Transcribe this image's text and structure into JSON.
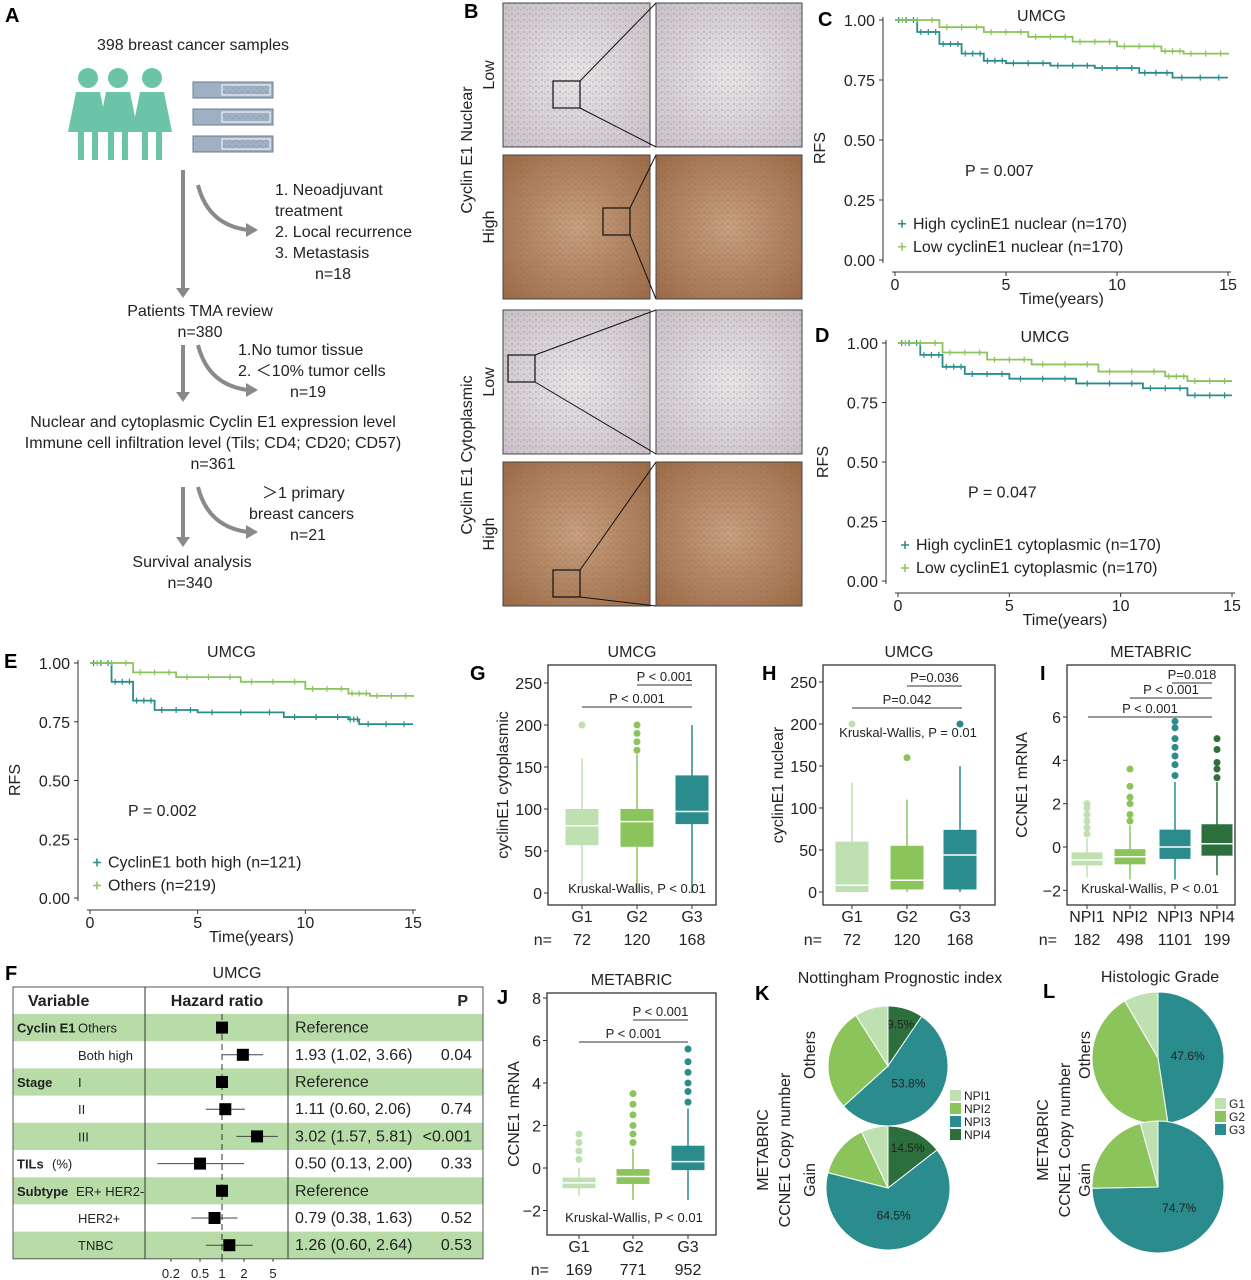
{
  "colors": {
    "teal": "#2a8c8c",
    "light_green": "#8cc45c",
    "pale_green": "#bfe0b0",
    "mid_green": "#8cc45c",
    "dark_green": "#2c6e3c",
    "forest_band": "#b8dca8",
    "flow": "#6cc4a8"
  },
  "panel_a": {
    "label": "A",
    "samples": "398 breast cancer samples",
    "exclusion1": [
      "1. Neoadjuvant",
      "treatment",
      "2. Local recurrence",
      "3. Metastasis",
      "n=18"
    ],
    "step1": [
      "Patients TMA review",
      "n=380"
    ],
    "exclusion2": [
      "1.No tumor tissue",
      "2. ＜10% tumor cells",
      "n=19"
    ],
    "step2": [
      "Nuclear and cytoplasmic Cyclin E1 expression level",
      "Immune cell infiltration level (Tils; CD4; CD20; CD57)",
      "n=361"
    ],
    "exclusion3": [
      "＞1 primary",
      "breast cancers",
      "n=21"
    ],
    "step3": [
      "Survival analysis",
      "n=340"
    ]
  },
  "panel_b": {
    "label": "B",
    "group1": "Cyclin E1 Nuclear",
    "group2": "Cyclin E1 Cytoplasmic",
    "rows": [
      "Low",
      "High",
      "Low",
      "High"
    ]
  },
  "chart_data": [
    {
      "id": "C",
      "type": "line",
      "label": "C",
      "title": "UMCG",
      "xlabel": "Time(years)",
      "ylabel": "RFS",
      "xlim": [
        0,
        15
      ],
      "ylim": [
        0,
        1
      ],
      "xticks": [
        "0",
        "5",
        "10",
        "15"
      ],
      "yticks": [
        "0.00",
        "0.25",
        "0.50",
        "0.75",
        "1.00"
      ],
      "pvalue": "P = 0.007",
      "legend": "bottom-left",
      "series": [
        {
          "name": "High cyclinE1 nuclear (n=170)",
          "color": "#2a8c8c",
          "x": [
            0,
            1,
            2,
            3,
            4,
            5,
            7,
            9,
            11,
            12.5,
            15
          ],
          "y": [
            1,
            0.95,
            0.9,
            0.86,
            0.83,
            0.82,
            0.81,
            0.8,
            0.78,
            0.76,
            0.76
          ]
        },
        {
          "name": "Low cyclinE1 nuclear (n=170)",
          "color": "#8cc45c",
          "x": [
            0,
            2,
            4,
            6,
            8,
            10,
            12,
            13,
            15
          ],
          "y": [
            1,
            0.97,
            0.95,
            0.93,
            0.91,
            0.89,
            0.87,
            0.86,
            0.855
          ]
        }
      ]
    },
    {
      "id": "D",
      "type": "line",
      "label": "D",
      "title": "UMCG",
      "xlabel": "Time(years)",
      "ylabel": "RFS",
      "xlim": [
        0,
        15
      ],
      "ylim": [
        0,
        1
      ],
      "xticks": [
        "0",
        "5",
        "10",
        "15"
      ],
      "yticks": [
        "0.00",
        "0.25",
        "0.50",
        "0.75",
        "1.00"
      ],
      "pvalue": "P = 0.047",
      "legend": "bottom-left",
      "series": [
        {
          "name": "High cyclinE1 cytoplasmic (n=170)",
          "color": "#2a8c8c",
          "x": [
            0,
            1,
            2,
            3,
            5,
            8,
            11,
            13,
            15
          ],
          "y": [
            1,
            0.95,
            0.9,
            0.87,
            0.85,
            0.83,
            0.81,
            0.78,
            0.78
          ]
        },
        {
          "name": "Low cyclinE1 cytoplasmic (n=170)",
          "color": "#8cc45c",
          "x": [
            0,
            2,
            4,
            6,
            9,
            12,
            13,
            15
          ],
          "y": [
            1,
            0.96,
            0.93,
            0.91,
            0.88,
            0.86,
            0.84,
            0.84
          ]
        }
      ]
    },
    {
      "id": "E",
      "type": "line",
      "label": "E",
      "title": "UMCG",
      "xlabel": "Time(years)",
      "ylabel": "RFS",
      "xlim": [
        0,
        15
      ],
      "ylim": [
        0,
        1
      ],
      "xticks": [
        "0",
        "5",
        "10",
        "15"
      ],
      "yticks": [
        "0.00",
        "0.25",
        "0.50",
        "0.75",
        "1.00"
      ],
      "pvalue": "P = 0.002",
      "legend": "bottom-left",
      "series": [
        {
          "name": "CyclinE1 both high (n=121)",
          "color": "#2a8c8c",
          "x": [
            0,
            1,
            2,
            3,
            5,
            9,
            12,
            12.5,
            15
          ],
          "y": [
            1,
            0.92,
            0.84,
            0.8,
            0.79,
            0.77,
            0.76,
            0.74,
            0.74
          ]
        },
        {
          "name": "Others (n=219)",
          "color": "#8cc45c",
          "x": [
            0,
            2,
            4,
            7,
            10,
            12,
            13,
            15
          ],
          "y": [
            1,
            0.96,
            0.94,
            0.92,
            0.89,
            0.87,
            0.86,
            0.855
          ]
        }
      ]
    },
    {
      "id": "G",
      "type": "box",
      "label": "G",
      "title": "UMCG",
      "ylabel": "cyclinE1 cytoplasmic",
      "ylim": [
        0,
        250
      ],
      "yticks": [
        "0",
        "50",
        "100",
        "150",
        "200",
        "250"
      ],
      "categories": [
        "G1",
        "G2",
        "G3"
      ],
      "n_prefix": "n=",
      "n": [
        "72",
        "120",
        "168"
      ],
      "test": "Kruskal-Wallis, P < 0.01",
      "comparisons": [
        "P < 0.001",
        "P < 0.001"
      ],
      "boxes": [
        {
          "q1": 57,
          "median": 80,
          "q3": 100,
          "low": 0,
          "high": 160,
          "outliers": [
            200
          ],
          "color": "#bfe0b0"
        },
        {
          "q1": 55,
          "median": 85,
          "q3": 100,
          "low": 0,
          "high": 165,
          "outliers": [
            170,
            180,
            190,
            200
          ],
          "color": "#8cc45c"
        },
        {
          "q1": 82,
          "median": 97,
          "q3": 140,
          "low": 0,
          "high": 200,
          "outliers": [],
          "color": "#2a8c8c"
        }
      ]
    },
    {
      "id": "H",
      "type": "box",
      "label": "H",
      "title": "UMCG",
      "ylabel": "cyclinE1 nuclear",
      "ylim": [
        0,
        250
      ],
      "yticks": [
        "0",
        "50",
        "100",
        "150",
        "200",
        "250"
      ],
      "categories": [
        "G1",
        "G2",
        "G3"
      ],
      "n_prefix": "n=",
      "n": [
        "72",
        "120",
        "168"
      ],
      "test": "Kruskal-Wallis, P = 0.01",
      "comparisons": [
        "P=0.036",
        "P=0.042"
      ],
      "boxes": [
        {
          "q1": 0,
          "median": 8,
          "q3": 60,
          "low": 0,
          "high": 130,
          "outliers": [
            200
          ],
          "color": "#bfe0b0"
        },
        {
          "q1": 3,
          "median": 14,
          "q3": 55,
          "low": 0,
          "high": 110,
          "outliers": [
            160
          ],
          "color": "#8cc45c"
        },
        {
          "q1": 3,
          "median": 44,
          "q3": 74,
          "low": 0,
          "high": 150,
          "outliers": [
            200
          ],
          "color": "#2a8c8c"
        }
      ]
    },
    {
      "id": "I",
      "type": "box",
      "label": "I",
      "title": "METABRIC",
      "ylabel": "CCNE1 mRNA",
      "ylim": [
        -2.3,
        8
      ],
      "yticks": [
        "−2",
        "0",
        "2",
        "4",
        "6"
      ],
      "categories": [
        "NPI1",
        "NPI2",
        "NPI3",
        "NPI4"
      ],
      "n_prefix": "n=",
      "n": [
        "182",
        "498",
        "1101",
        "199"
      ],
      "test": "Kruskal-Wallis, P < 0.01",
      "comparisons": [
        "P=0.018",
        "P < 0.001",
        "P < 0.001"
      ],
      "boxes": [
        {
          "q1": -0.85,
          "median": -0.6,
          "q3": -0.25,
          "low": -1.4,
          "high": 0.4,
          "outliers": [
            0.6,
            0.9,
            1.2,
            1.5,
            1.8,
            2.0
          ],
          "color": "#bfe0b0"
        },
        {
          "q1": -0.8,
          "median": -0.45,
          "q3": -0.1,
          "low": -1.5,
          "high": 1.0,
          "outliers": [
            1.2,
            1.5,
            2.0,
            2.3,
            2.8,
            3.6
          ],
          "color": "#8cc45c"
        },
        {
          "q1": -0.55,
          "median": 0,
          "q3": 0.8,
          "low": -1.5,
          "high": 3.0,
          "outliers": [
            3.3,
            3.8,
            4.2,
            4.6,
            5.0,
            5.5,
            5.8
          ],
          "color": "#2a8c8c"
        },
        {
          "q1": -0.4,
          "median": 0.15,
          "q3": 1.05,
          "low": -1.3,
          "high": 3.0,
          "outliers": [
            3.2,
            3.6,
            3.9,
            4.5,
            5.0
          ],
          "color": "#2c6e3c"
        }
      ]
    },
    {
      "id": "J",
      "type": "box",
      "label": "J",
      "title": "METABRIC",
      "ylabel": "CCNE1 mRNA",
      "ylim": [
        -2.6,
        8.2
      ],
      "yticks": [
        "−2",
        "0",
        "2",
        "4",
        "6",
        "8"
      ],
      "categories": [
        "G1",
        "G2",
        "G3"
      ],
      "n_prefix": "n=",
      "n": [
        "169",
        "771",
        "952"
      ],
      "test": "Kruskal-Wallis, P < 0.01",
      "comparisons": [
        "P < 0.001",
        "P < 0.001"
      ],
      "boxes": [
        {
          "q1": -0.95,
          "median": -0.7,
          "q3": -0.45,
          "low": -1.3,
          "high": 0,
          "outliers": [
            0.4,
            0.8,
            1.2,
            1.6
          ],
          "color": "#bfe0b0"
        },
        {
          "q1": -0.75,
          "median": -0.4,
          "q3": -0.05,
          "low": -1.5,
          "high": 0.9,
          "outliers": [
            1.2,
            1.6,
            2.0,
            2.5,
            3.0,
            3.5
          ],
          "color": "#8cc45c"
        },
        {
          "q1": -0.1,
          "median": 0.3,
          "q3": 1.05,
          "low": -1.5,
          "high": 2.8,
          "outliers": [
            3.1,
            3.6,
            4.0,
            4.5,
            5.0,
            5.6
          ],
          "color": "#2a8c8c"
        }
      ]
    },
    {
      "id": "K",
      "type": "pie",
      "label": "K",
      "title": "Nottingham Prognostic index",
      "ylabel": [
        "METABRIC",
        "CCNE1 Copy number"
      ],
      "groups": [
        "Others",
        "Gain"
      ],
      "legend": [
        "NPI1",
        "NPI2",
        "NPI3",
        "NPI4"
      ],
      "legend_colors": [
        "#bfe0b0",
        "#8cc45c",
        "#2a8c8c",
        "#2c6e3c"
      ],
      "pies": [
        {
          "values": [
            9.5,
            53.8,
            27.7,
            9.0
          ],
          "order": [
            "NPI4",
            "NPI3",
            "NPI2",
            "NPI1"
          ],
          "labels": [
            "9.5%",
            "53.8%"
          ]
        },
        {
          "values": [
            14.5,
            64.5,
            14.0,
            7.0
          ],
          "order": [
            "NPI4",
            "NPI3",
            "NPI2",
            "NPI1"
          ],
          "labels": [
            "14.5%",
            "64.5%"
          ]
        }
      ]
    },
    {
      "id": "L",
      "type": "pie",
      "label": "L",
      "title": "Histologic Grade",
      "ylabel": [
        "METABRIC",
        "CCNE1 Copy number"
      ],
      "groups": [
        "Others",
        "Gain"
      ],
      "legend": [
        "G1",
        "G2",
        "G3"
      ],
      "legend_colors": [
        "#bfe0b0",
        "#8cc45c",
        "#2a8c8c"
      ],
      "pies": [
        {
          "values": [
            47.6,
            44.0,
            8.4
          ],
          "order": [
            "G3",
            "G2",
            "G1"
          ],
          "labels": [
            "47.6%"
          ]
        },
        {
          "values": [
            74.7,
            21.0,
            4.3
          ],
          "order": [
            "G3",
            "G2",
            "G1"
          ],
          "labels": [
            "74.7%"
          ]
        }
      ]
    }
  ],
  "forest": {
    "label": "F",
    "title": "UMCG",
    "headers": [
      "Variable",
      "Hazard ratio",
      "P"
    ],
    "axis_ticks": [
      0.2,
      0.5,
      1,
      2,
      5
    ],
    "rows": [
      {
        "group": "Cyclin E1",
        "level": "Others",
        "hr": 1,
        "lo": null,
        "hi": null,
        "text": "Reference",
        "p": ""
      },
      {
        "group": "",
        "level": "Both high",
        "hr": 1.93,
        "lo": 1.02,
        "hi": 3.66,
        "text": "1.93 (1.02, 3.66)",
        "p": "0.04"
      },
      {
        "group": "Stage",
        "level": "I",
        "hr": 1,
        "lo": null,
        "hi": null,
        "text": "Reference",
        "p": ""
      },
      {
        "group": "",
        "level": "II",
        "hr": 1.11,
        "lo": 0.6,
        "hi": 2.06,
        "text": "1.11 (0.60, 2.06)",
        "p": "0.74"
      },
      {
        "group": "",
        "level": "III",
        "hr": 3.02,
        "lo": 1.57,
        "hi": 5.81,
        "text": "3.02 (1.57, 5.81)",
        "p": "<0.001"
      },
      {
        "group": "TILs",
        "group_suffix": "(%)",
        "level": "",
        "hr": 0.5,
        "lo": 0.13,
        "hi": 2.0,
        "text": "0.50 (0.13, 2.00)",
        "p": "0.33"
      },
      {
        "group": "Subtype",
        "level": "ER+ HER2-",
        "hr": 1,
        "lo": null,
        "hi": null,
        "text": "Reference",
        "p": ""
      },
      {
        "group": "",
        "level": "HER2+",
        "hr": 0.79,
        "lo": 0.38,
        "hi": 1.63,
        "text": "0.79 (0.38, 1.63)",
        "p": "0.52"
      },
      {
        "group": "",
        "level": "TNBC",
        "hr": 1.26,
        "lo": 0.6,
        "hi": 2.64,
        "text": "1.26 (0.60, 2.64)",
        "p": "0.53"
      }
    ]
  }
}
